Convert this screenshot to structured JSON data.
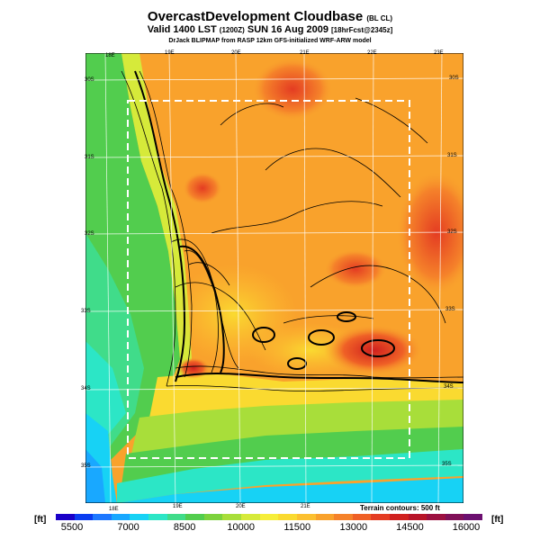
{
  "title": {
    "main": "OvercastDevelopment Cloudbase",
    "main_suffix": "(BL CL)",
    "line2": "Valid 1400 LST",
    "line2_z": "(1200Z)",
    "line2_date": "SUN 16 Aug 2009",
    "line2_fcst": "[18hrFcst@2345z]",
    "line3": "DrJack BLIPMAP from RASP 12km GFS-initialized WRF-ARW model"
  },
  "map": {
    "lon_labels_top": [
      "18E",
      "19E",
      "20E",
      "21E",
      "22E",
      "23E"
    ],
    "lon_labels_bottom": [
      "18E",
      "19E",
      "20E",
      "21E"
    ],
    "lat_labels_left": [
      "30S",
      "31S",
      "32S",
      "33S",
      "34S",
      "35S"
    ],
    "lat_labels_right": [
      "30S",
      "31S",
      "32S",
      "33S",
      "34S",
      "35S"
    ],
    "terrain_note": "Terrain contours: 500 ft"
  },
  "colorbar": {
    "unit_left": "[ft]",
    "unit_right": "[ft]",
    "labels": [
      "5500",
      "7000",
      "8500",
      "10000",
      "11500",
      "13000",
      "14500",
      "16000"
    ],
    "colors": [
      "#1a00c8",
      "#0a3cf0",
      "#1e78ff",
      "#19a8ff",
      "#17d2f5",
      "#2ce6c6",
      "#40dc8a",
      "#52cd4e",
      "#7cd23c",
      "#a8de3a",
      "#d6ea3a",
      "#f6ee3a",
      "#fada30",
      "#fcc030",
      "#f9a22c",
      "#f5822a",
      "#ef6026",
      "#e43c22",
      "#d0201e",
      "#b81428",
      "#9c1040",
      "#801058",
      "#6c1070"
    ]
  }
}
